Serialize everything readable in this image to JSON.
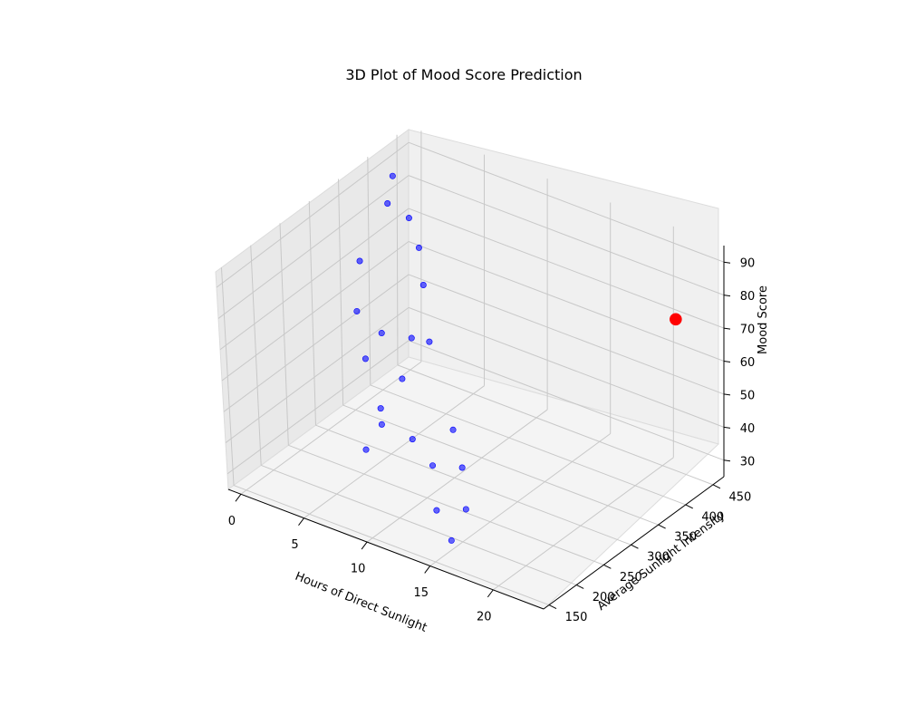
{
  "chart_data": {
    "type": "scatter",
    "title": "3D Plot of Mood Score Prediction",
    "xlabel": "Hours of Direct Sunlight",
    "ylabel": "Average Sunlight Intensity",
    "zlabel": "Mood Score",
    "xlim": [
      -1,
      24
    ],
    "ylim": [
      140,
      470
    ],
    "zlim": [
      25,
      95
    ],
    "xticks": [
      "0",
      "5",
      "10",
      "15",
      "20"
    ],
    "yticks": [
      "150",
      "200",
      "250",
      "300",
      "350",
      "400",
      "450"
    ],
    "zticks": [
      "30",
      "40",
      "50",
      "60",
      "70",
      "80",
      "90"
    ],
    "grid": true,
    "series": [
      {
        "color": "#0000ff",
        "points": [
          {
            "x": 0.5,
            "y": 410,
            "z": 90
          },
          {
            "x": 1.0,
            "y": 390,
            "z": 85
          },
          {
            "x": 2.0,
            "y": 405,
            "z": 80
          },
          {
            "x": 1.5,
            "y": 330,
            "z": 76
          },
          {
            "x": 3.0,
            "y": 400,
            "z": 73
          },
          {
            "x": 3.5,
            "y": 280,
            "z": 70
          },
          {
            "x": 4.0,
            "y": 385,
            "z": 65
          },
          {
            "x": 4.5,
            "y": 300,
            "z": 62
          },
          {
            "x": 5.0,
            "y": 260,
            "z": 60
          },
          {
            "x": 5.5,
            "y": 330,
            "z": 58
          },
          {
            "x": 6.0,
            "y": 350,
            "z": 55
          },
          {
            "x": 6.5,
            "y": 290,
            "z": 52
          },
          {
            "x": 7.0,
            "y": 240,
            "z": 50
          },
          {
            "x": 7.5,
            "y": 230,
            "z": 47
          },
          {
            "x": 8.0,
            "y": 190,
            "z": 45
          },
          {
            "x": 9.0,
            "y": 250,
            "z": 42
          },
          {
            "x": 10.0,
            "y": 300,
            "z": 40
          },
          {
            "x": 11.0,
            "y": 240,
            "z": 38
          },
          {
            "x": 12.0,
            "y": 270,
            "z": 35
          },
          {
            "x": 13.0,
            "y": 200,
            "z": 32
          },
          {
            "x": 14.0,
            "y": 230,
            "z": 30
          },
          {
            "x": 15.0,
            "y": 180,
            "z": 28
          }
        ]
      },
      {
        "color": "#ff0000",
        "points": [
          {
            "x": 22.0,
            "y": 430,
            "z": 75
          }
        ]
      }
    ]
  }
}
